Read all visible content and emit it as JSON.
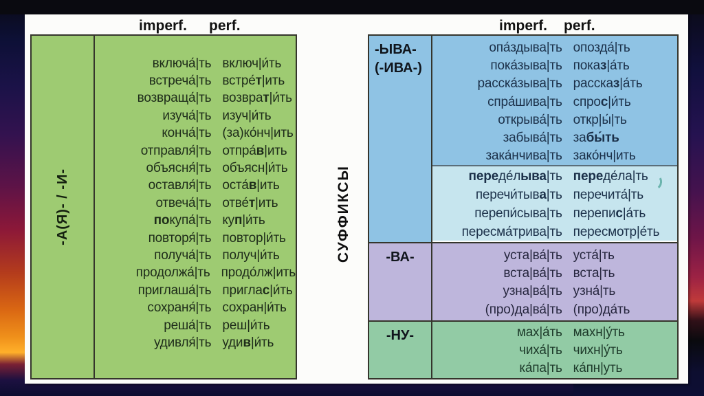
{
  "slide": {
    "middle_label": "СУФФИКСЫ",
    "annotation": {
      "color": "#55a89e"
    },
    "left_table": {
      "header_imperf": "imperf.",
      "header_perf": "perf.",
      "label": "-А(Я)- / -И-",
      "bg": "#9ecb72",
      "text_color": "#1e2c1a",
      "rows": [
        [
          "включа́|ть",
          "включ|и́ть"
        ],
        [
          "встреча́|ть",
          "встре́*т*|ить"
        ],
        [
          "возвраща́|ть",
          "возвра*т*|и́ть"
        ],
        [
          "изуча́|ть",
          "изуч|и́ть"
        ],
        [
          "конча́|ть",
          "(за)ко́нч|ить"
        ],
        [
          "отправля́|ть",
          "отпра́*в*|ить"
        ],
        [
          "объясня́|ть",
          "объясн|и́ть"
        ],
        [
          "оставля́|ть",
          "оста́*в*|ить"
        ],
        [
          "отвеча́|ть",
          "отве́*т*|ить"
        ],
        [
          "*по*купа́|ть",
          "ку*п*|и́ть"
        ],
        [
          "повторя́|ть",
          "повтор|и́ть"
        ],
        [
          "получа́|ть",
          "получ|и́ть"
        ],
        [
          "продолжа́|ть",
          "продо́лж|ить"
        ],
        [
          "приглаша́|ть",
          "пригла*с*|и́ть"
        ],
        [
          "сохраня́|ть",
          "сохран|и́ть"
        ],
        [
          "реша́|ть",
          "реш|и́ть"
        ],
        [
          "удивля́|ть",
          "уди*в*|и́ть"
        ]
      ]
    },
    "right_table": {
      "header_imperf": "imperf.",
      "header_perf": "perf.",
      "sections": [
        {
          "id": "yva",
          "label_lines": [
            "-ЫВА-",
            "(-ИВА-)"
          ],
          "label_bg": "#8fc3e4",
          "blocks": [
            {
              "id": "main",
              "bg": "#8fc3e4",
              "text_color": "#1b3049",
              "rows": [
                [
                  "опа́здыва|ть",
                  "опозда́|ть"
                ],
                [
                  "пока́зыва|ть",
                  "пока*з*|а́ть"
                ],
                [
                  "расска́зыва|ть",
                  "расска*з*|а́ть"
                ],
                [
                  "спра́шива|ть",
                  "спро*с*|и́ть"
                ],
                [
                  "открыва́|ть",
                  "откр|ы́|ть"
                ],
                [
                  "забыва́|ть",
                  "за*бы́ть*"
                ],
                [
                  "зака́нчива|ть",
                  "зако́нч|ить"
                ]
              ]
            },
            {
              "id": "sub",
              "bg": "#c6e5ee",
              "text_color": "#1b3049",
              "rows": [
                [
                  "*пере*де́л*ыва*|ть",
                  "*пере*де́ла|ть"
                ],
                [
                  "перечи́тыв*а*|ть",
                  "перечита́|ть"
                ],
                [
                  "перепи́сыва|ть",
                  "перепи*с*|а́ть"
                ],
                [
                  "пересма́трива|ть",
                  "пересмотр|е́ть"
                ]
              ]
            }
          ]
        },
        {
          "id": "va",
          "label_lines": [
            "-ВА-"
          ],
          "label_bg": "#beb6dc",
          "blocks": [
            {
              "id": "main",
              "bg": "#beb6dc",
              "text_color": "#26263e",
              "rows": [
                [
                  "уста|ва́|ть",
                  "уста́|ть"
                ],
                [
                  "вста|ва́|ть",
                  "вста|ть"
                ],
                [
                  "узна|ва́|ть",
                  "узна́|ть"
                ],
                [
                  "(про)да|ва́|ть",
                  "(про)да́ть"
                ]
              ]
            }
          ]
        },
        {
          "id": "nu",
          "label_lines": [
            "-НУ-"
          ],
          "label_bg": "#92cba5",
          "blocks": [
            {
              "id": "main",
              "bg": "#92cba5",
              "text_color": "#1d3a2a",
              "rows": [
                [
                  "мах|а́ть",
                  "махн|у́ть"
                ],
                [
                  "чиха́|ть",
                  "чихн|у́ть"
                ],
                [
                  "ка́па|ть",
                  "ка́пн|уть"
                ]
              ]
            }
          ]
        }
      ]
    }
  }
}
